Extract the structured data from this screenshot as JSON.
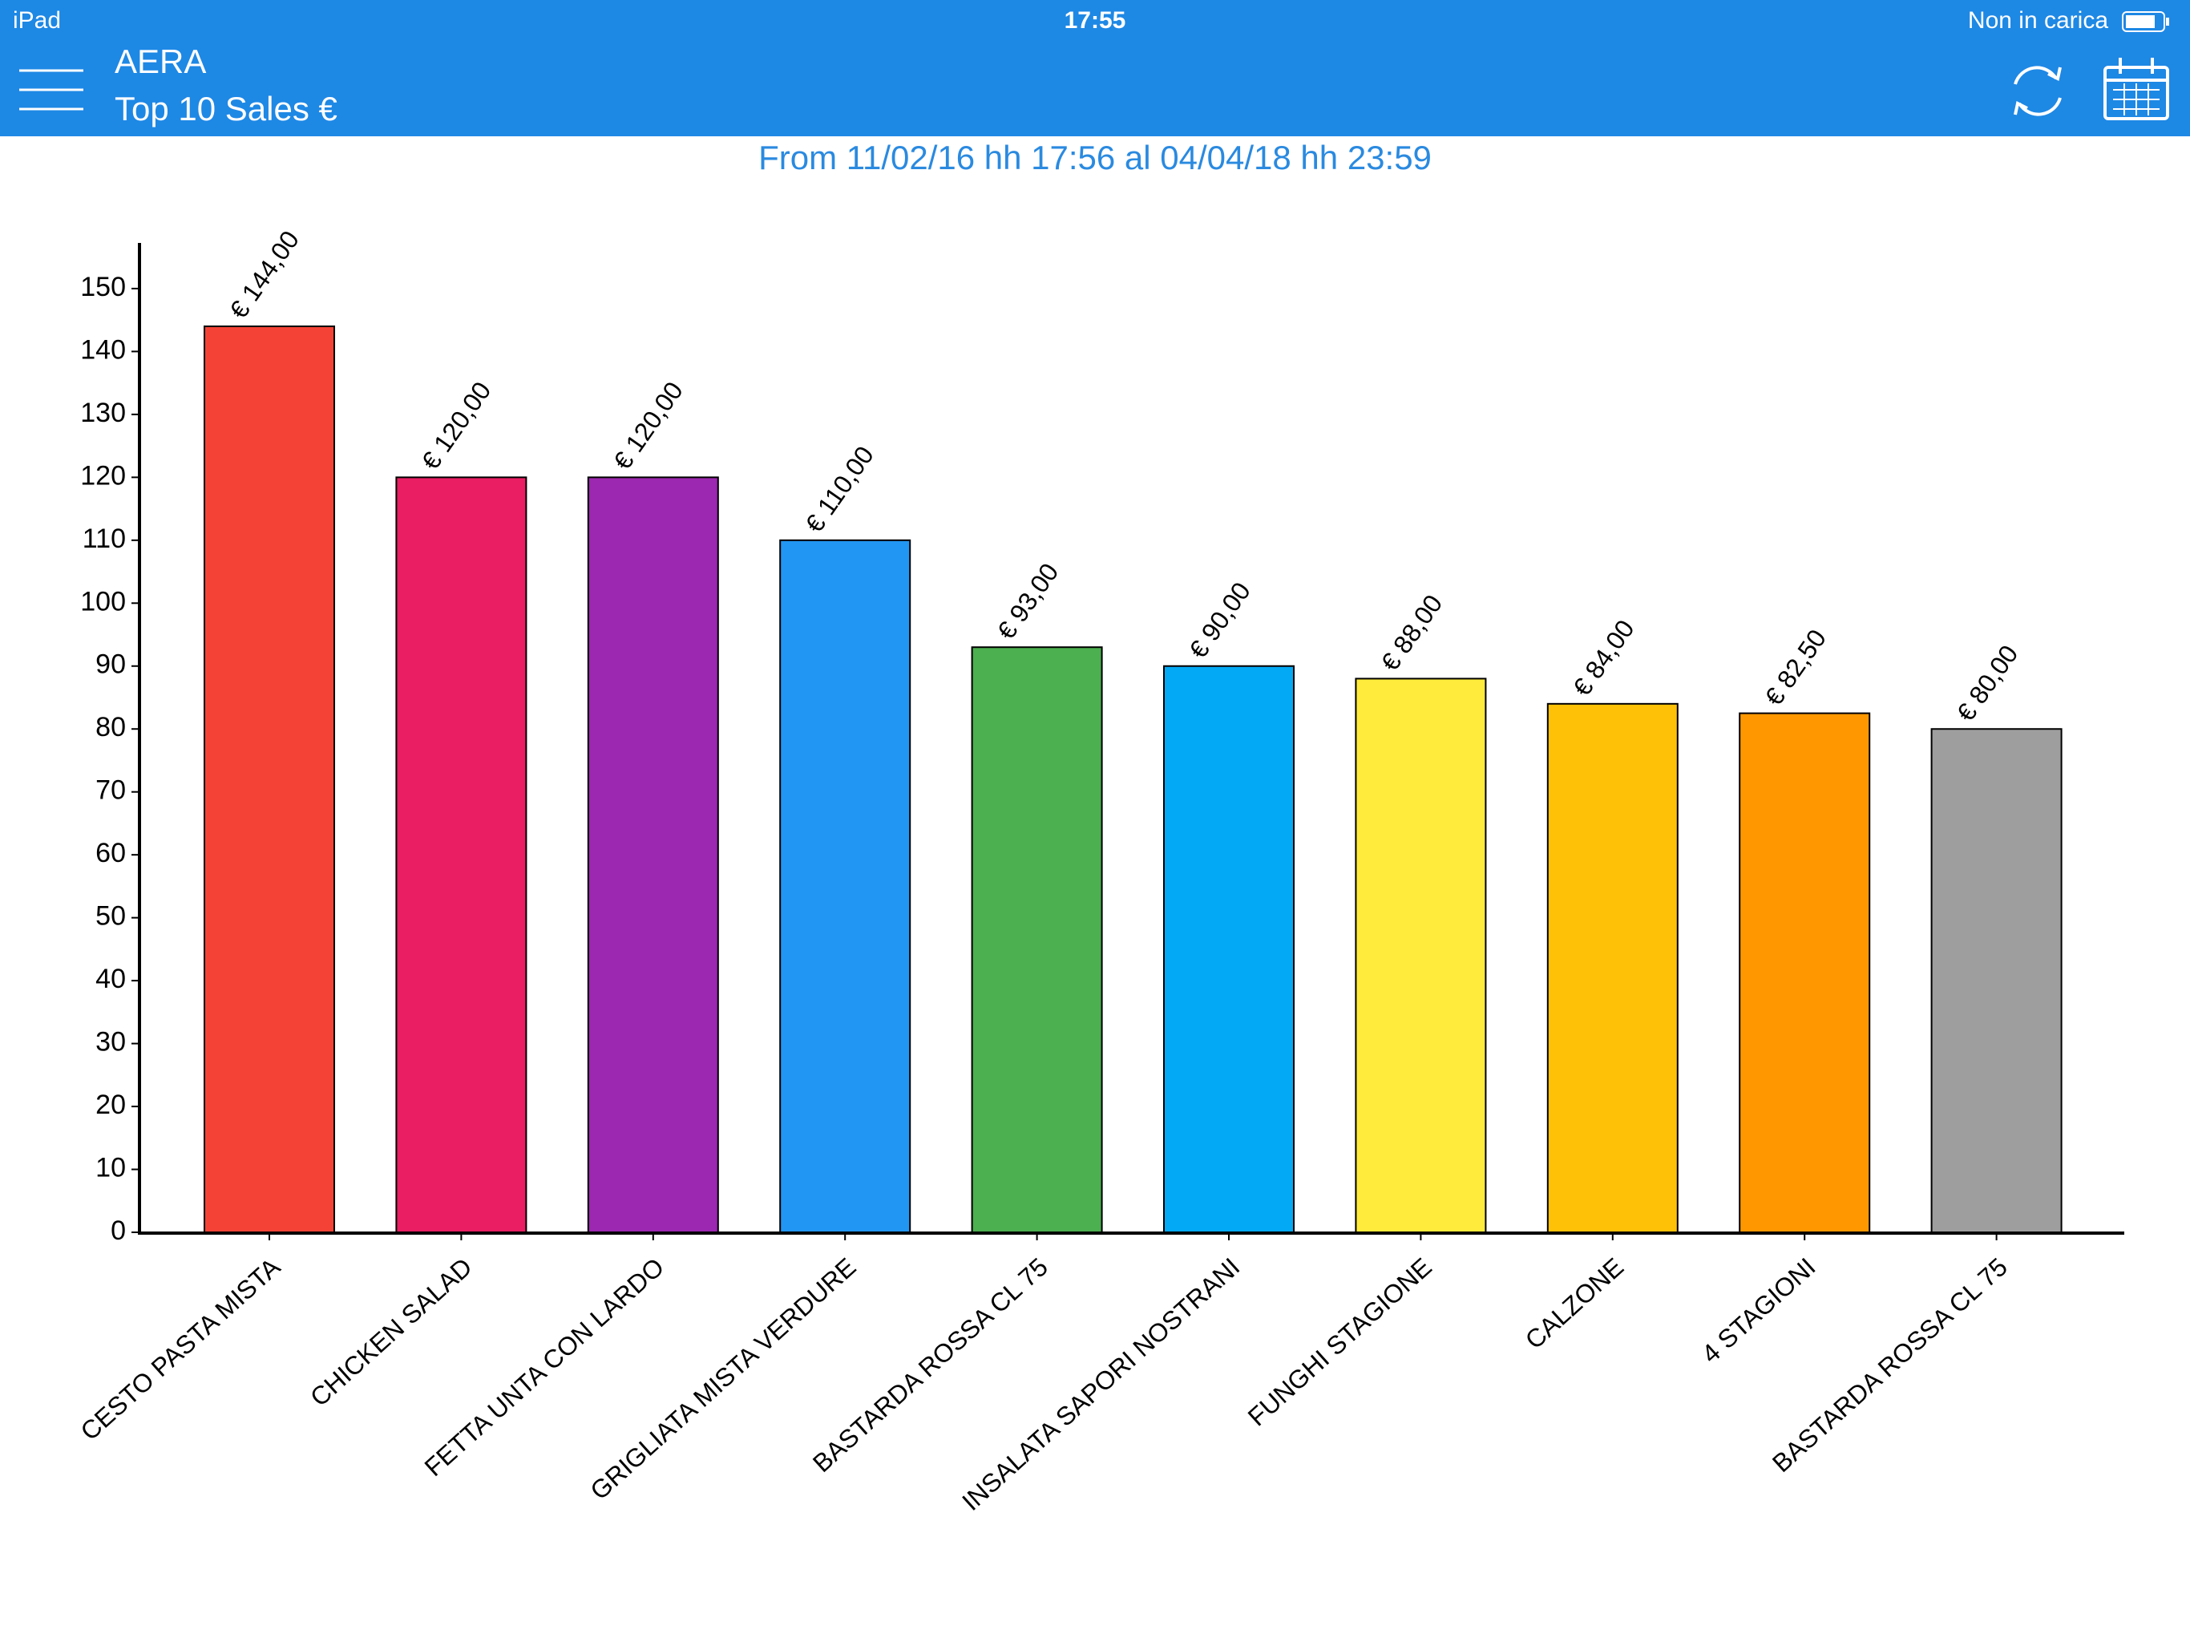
{
  "status_bar": {
    "device": "iPad",
    "time": "17:55",
    "battery": "Non in carica"
  },
  "header": {
    "app": "AERA",
    "title": "Top 10 Sales €"
  },
  "chart_data": {
    "type": "bar",
    "title": "From 11/02/16 hh 17:56 al 04/04/18 hh 23:59",
    "categories": [
      "CESTO PASTA MISTA",
      "CHICKEN SALAD",
      "FETTA UNTA CON LARDO",
      "GRIGLIATA MISTA VERDURE",
      "BASTARDA ROSSA CL 75",
      "INSALATA SAPORI NOSTRANI",
      "FUNGHI STAGIONE",
      "CALZONE",
      "4 STAGIONI",
      "BASTARDA ROSSA CL 75"
    ],
    "values": [
      144,
      120,
      120,
      110,
      93,
      90,
      88,
      84,
      82.5,
      80
    ],
    "value_labels": [
      "€ 144,00",
      "€ 120,00",
      "€ 120,00",
      "€ 110,00",
      "€ 93,00",
      "€ 90,00",
      "€ 88,00",
      "€ 84,00",
      "€ 82,50",
      "€ 80,00"
    ],
    "colors": [
      "#f44336",
      "#e91e63",
      "#9c27b0",
      "#2196f3",
      "#4caf50",
      "#03a9f4",
      "#ffeb3b",
      "#ffc107",
      "#ff9800",
      "#9e9e9e"
    ],
    "ylim": [
      0,
      157
    ],
    "yticks": [
      0,
      10,
      20,
      30,
      40,
      50,
      60,
      70,
      80,
      90,
      100,
      110,
      120,
      130,
      140,
      150
    ]
  }
}
